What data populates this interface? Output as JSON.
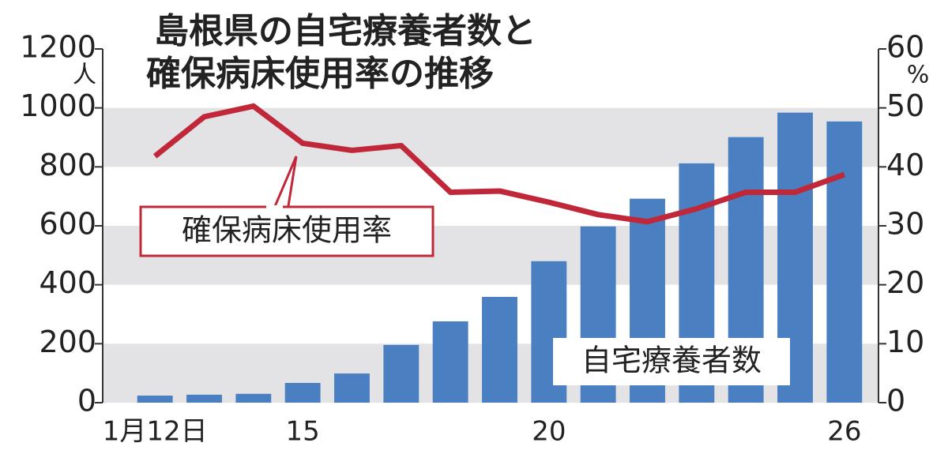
{
  "chart_data": {
    "type": "bar_line",
    "title": [
      "島根県の自宅療養者数と",
      "確保病床使用率の推移"
    ],
    "categories": [
      "1月12日",
      null,
      null,
      "15",
      null,
      null,
      null,
      null,
      "20",
      null,
      null,
      null,
      null,
      null,
      "26"
    ],
    "series": [
      {
        "name": "自宅療養者数",
        "type": "bar",
        "color": "#4a7fc1",
        "values": [
          24,
          27,
          30,
          67,
          99,
          196,
          276,
          359,
          480,
          598,
          692,
          812,
          901,
          984,
          954
        ]
      },
      {
        "name": "確保病床使用率",
        "type": "line",
        "axis": "y2",
        "color": "#c0283a",
        "values": [
          41.8,
          48.5,
          50.3,
          44.0,
          42.8,
          43.6,
          35.7,
          35.9,
          34.0,
          31.9,
          30.7,
          32.9,
          35.7,
          35.7,
          38.7
        ]
      }
    ],
    "ylim": [
      0,
      1200
    ],
    "yticks": [
      0,
      200,
      400,
      600,
      800,
      1000,
      1200
    ],
    "y_unit": "人",
    "y2lim": [
      0,
      60
    ],
    "y2ticks": [
      0,
      10,
      20,
      30,
      40,
      50,
      60
    ],
    "y2_unit": "%",
    "grid_bands": true
  }
}
